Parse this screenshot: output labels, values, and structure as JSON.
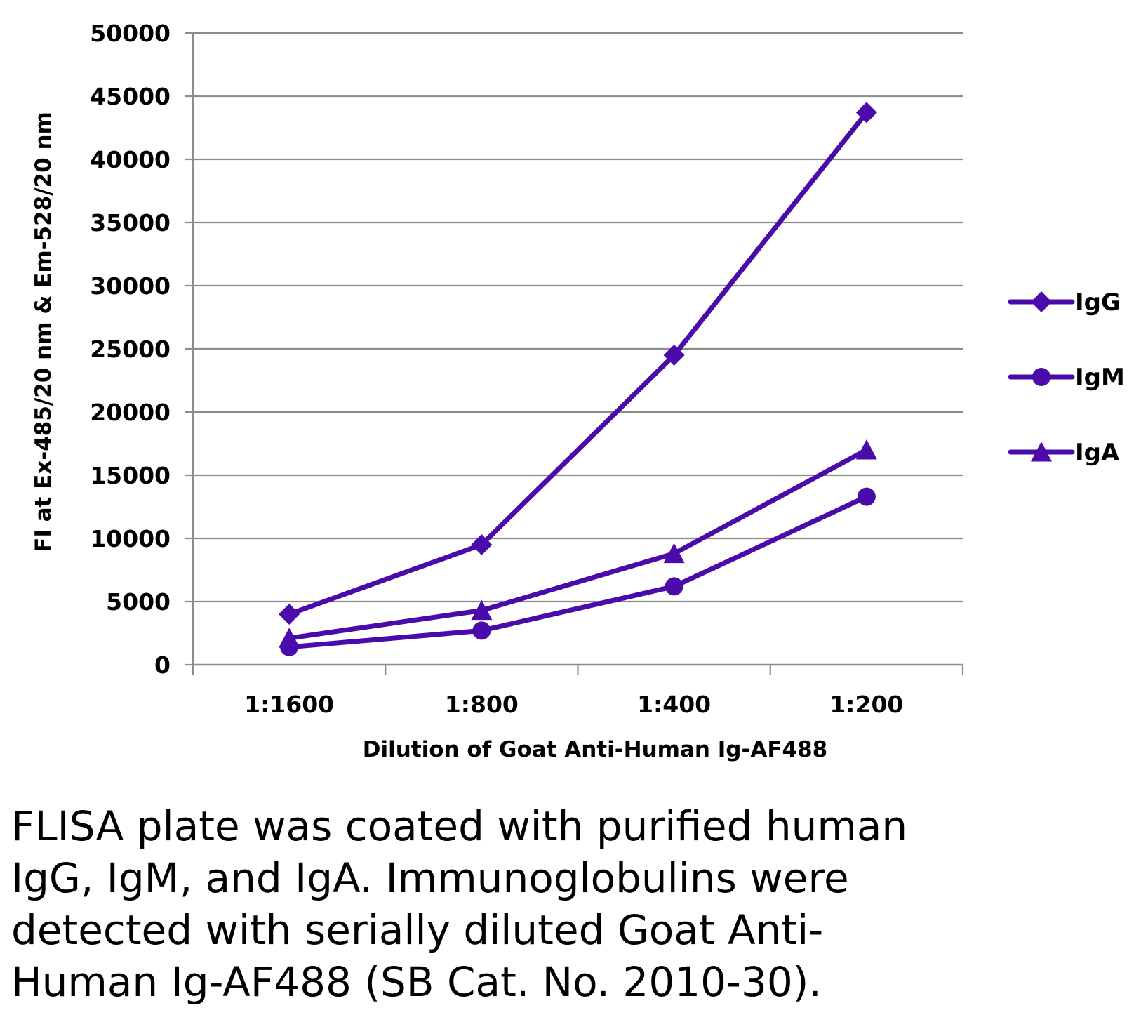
{
  "chart_data": {
    "type": "line",
    "title": "",
    "xlabel": "Dilution of Goat Anti-Human Ig-AF488",
    "ylabel": "FI at Ex-485/20 nm & Em-528/20 nm",
    "categories": [
      "1:1600",
      "1:800",
      "1:400",
      "1:200"
    ],
    "ylim": [
      0,
      50000
    ],
    "yticks": [
      0,
      5000,
      10000,
      15000,
      20000,
      25000,
      30000,
      35000,
      40000,
      45000,
      50000
    ],
    "grid": true,
    "legend_position": "right",
    "series": [
      {
        "name": "IgG",
        "marker": "diamond",
        "values": [
          4000,
          9500,
          24500,
          43700
        ]
      },
      {
        "name": "IgM",
        "marker": "circle",
        "values": [
          1400,
          2700,
          6200,
          13300
        ]
      },
      {
        "name": "IgA",
        "marker": "triangle",
        "values": [
          2100,
          4300,
          8800,
          17000
        ]
      }
    ]
  },
  "colors": {
    "series": "#4B0AAA",
    "grid": "#8C8C8C",
    "axis": "#8C8C8C",
    "text": "#000000"
  },
  "caption": {
    "lines": [
      "FLISA plate was coated with purified human",
      "IgG, IgM, and IgA.  Immunoglobulins were",
      "detected with serially diluted Goat Anti-",
      "Human Ig-AF488 (SB Cat. No. 2010-30)."
    ]
  }
}
